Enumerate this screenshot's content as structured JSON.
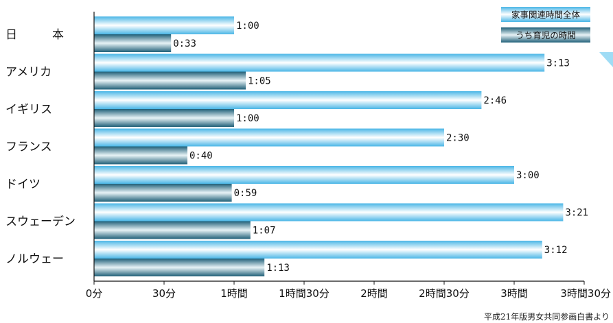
{
  "chart_data": {
    "type": "bar",
    "orientation": "horizontal",
    "categories": [
      "日　　　本",
      "アメリカ",
      "イギリス",
      "フランス",
      "ドイツ",
      "スウェーデン",
      "ノルウェー"
    ],
    "series": [
      {
        "name": "家事関連時間全体",
        "values": [
          60,
          193,
          166,
          150,
          180,
          201,
          192
        ],
        "labels": [
          "1:00",
          "3:13",
          "2:46",
          "2:30",
          "3:00",
          "3:21",
          "3:12"
        ],
        "color": "#5fc4ef"
      },
      {
        "name": "うち育児の時間",
        "values": [
          33,
          65,
          60,
          40,
          59,
          67,
          73
        ],
        "labels": [
          "0:33",
          "1:05",
          "1:00",
          "0:40",
          "0:59",
          "1:07",
          "1:13"
        ],
        "color": "#2f7e98"
      }
    ],
    "x_ticks": [
      0,
      30,
      60,
      90,
      120,
      150,
      180,
      210
    ],
    "x_tick_labels": [
      "0分",
      "30分",
      "1時間",
      "1時間30分",
      "2時間",
      "2時間30分",
      "3時間",
      "3時間30分"
    ],
    "xlim": [
      0,
      210
    ],
    "grid": false,
    "legend_position": "top-right"
  },
  "source_note": "平成21年版男女共同参画白書より"
}
